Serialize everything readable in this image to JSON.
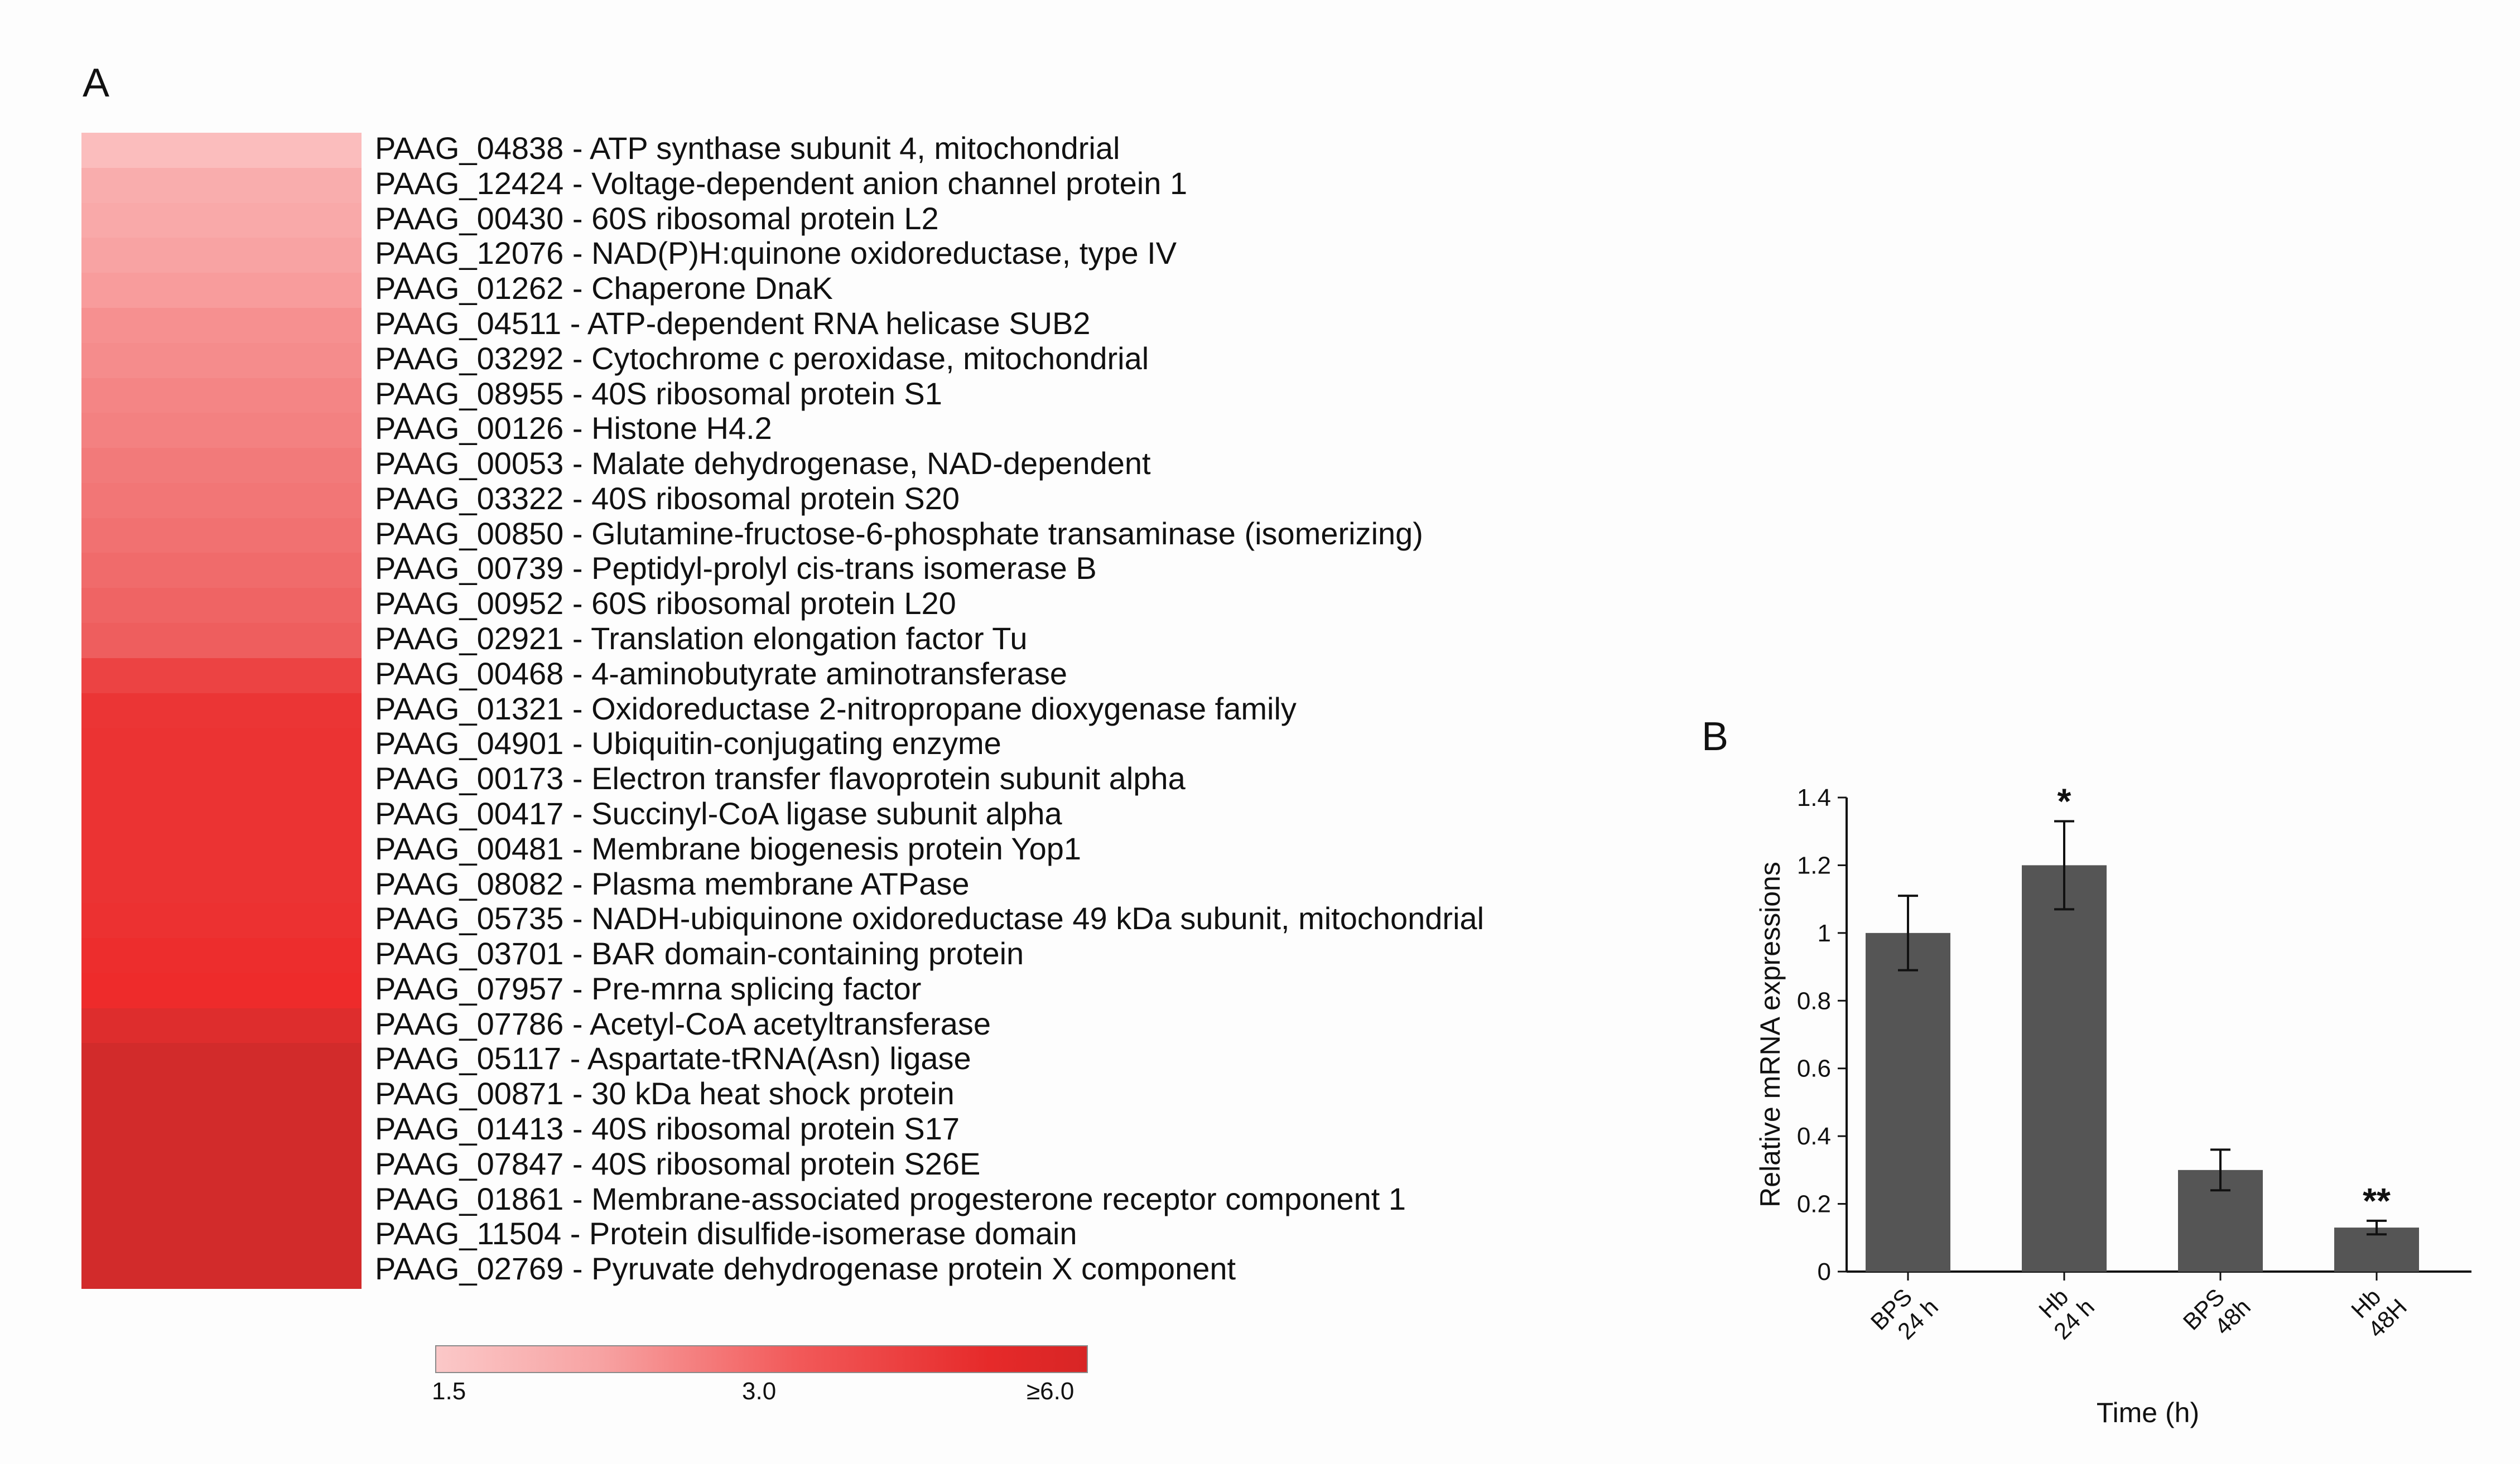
{
  "panel_labels": {
    "a": "A",
    "b": "B"
  },
  "heatmap": {
    "genes": [
      "PAAG_04838 - ATP synthase subunit 4, mitochondrial",
      "PAAG_12424 - Voltage-dependent anion channel protein 1",
      "PAAG_00430 - 60S ribosomal protein L2",
      "PAAG_12076 - NAD(P)H:quinone oxidoreductase, type IV",
      "PAAG_01262 - Chaperone DnaK",
      "PAAG_04511 - ATP-dependent RNA helicase SUB2",
      "PAAG_03292 - Cytochrome c peroxidase, mitochondrial",
      "PAAG_08955 - 40S ribosomal protein S1",
      "PAAG_00126 - Histone H4.2",
      "PAAG_00053 - Malate dehydrogenase, NAD-dependent",
      "PAAG_03322 - 40S ribosomal protein S20",
      "PAAG_00850 - Glutamine-fructose-6-phosphate transaminase (isomerizing)",
      "PAAG_00739 - Peptidyl-prolyl cis-trans isomerase B",
      "PAAG_00952 - 60S ribosomal protein L20",
      "PAAG_02921 - Translation elongation factor Tu",
      "PAAG_00468 - 4-aminobutyrate aminotransferase",
      "PAAG_01321 - Oxidoreductase 2-nitropropane dioxygenase family",
      "PAAG_04901 - Ubiquitin-conjugating enzyme",
      "PAAG_00173 - Electron transfer flavoprotein subunit alpha",
      "PAAG_00417 - Succinyl-CoA ligase subunit alpha",
      "PAAG_00481 - Membrane biogenesis protein Yop1",
      "PAAG_08082 - Plasma membrane ATPase",
      "PAAG_05735 - NADH-ubiquinone oxidoreductase 49 kDa subunit, mitochondrial",
      "PAAG_03701 - BAR domain-containing protein",
      "PAAG_07957 - Pre-mrna splicing factor",
      "PAAG_07786 - Acetyl-CoA acetyltransferase",
      "PAAG_05117 - Aspartate-tRNA(Asn) ligase",
      "PAAG_00871 - 30 kDa heat shock protein",
      "PAAG_01413 - 40S ribosomal protein S17",
      "PAAG_07847 - 40S ribosomal protein S26E",
      "PAAG_01861 - Membrane-associated progesterone receptor component 1",
      "PAAG_11504 - Protein disulfide-isomerase domain",
      "PAAG_02769 - Pyruvate dehydrogenase protein X component"
    ],
    "colors": [
      "#fbbdbd",
      "#f9adad",
      "#f9a9a9",
      "#f8a3a3",
      "#f89c9c",
      "#f69090",
      "#f58c8c",
      "#f48585",
      "#f38181",
      "#f27a7a",
      "#f27676",
      "#f17171",
      "#f06b6b",
      "#ef6464",
      "#ee5e5e",
      "#ec4343",
      "#eb3535",
      "#eb3333",
      "#eb3333",
      "#eb3333",
      "#eb3333",
      "#eb3333",
      "#ec3131",
      "#ed2d2d",
      "#ee2b2b",
      "#de2d2d",
      "#d22b2b",
      "#d22b2b",
      "#d22b2b",
      "#d22b2b",
      "#d22b2b",
      "#d22b2b",
      "#d22b2b"
    ],
    "colorbar": {
      "ticks": [
        "1.5",
        "3.0",
        "≥6.0"
      ]
    }
  },
  "chart_data": {
    "type": "bar",
    "categories": [
      [
        "BPS",
        "24 h"
      ],
      [
        "Hb",
        "24 h"
      ],
      [
        "BPS",
        "48h"
      ],
      [
        "Hb",
        "48H"
      ]
    ],
    "values": [
      1.0,
      1.2,
      0.3,
      0.13
    ],
    "errors": [
      0.11,
      0.13,
      0.06,
      0.02
    ],
    "significance": [
      "",
      "*",
      "",
      "**"
    ],
    "xlabel": "Time (h)",
    "ylabel": "Relative mRNA expressions",
    "ylim": [
      0,
      1.4
    ],
    "yticks": [
      "0",
      "0.2",
      "0.4",
      "0.6",
      "0.8",
      "1",
      "1.2",
      "1.4"
    ],
    "bar_color": "#555555"
  }
}
